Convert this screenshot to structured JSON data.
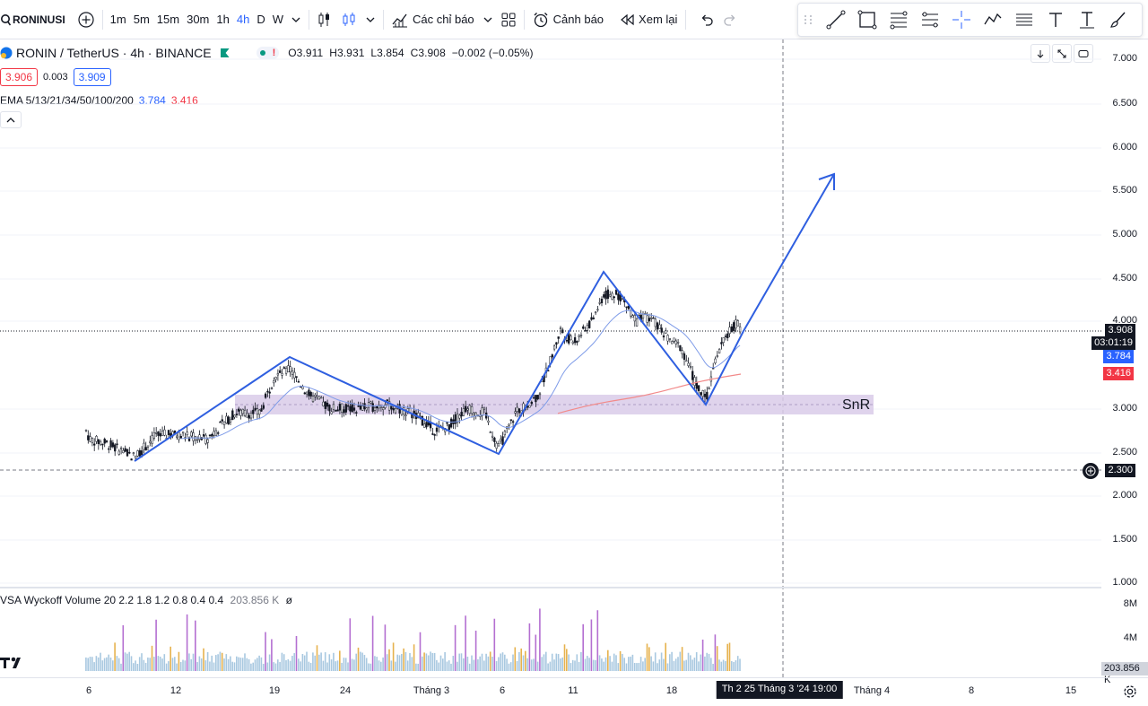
{
  "toolbar": {
    "symbol": "RONINUSI",
    "timeframes": [
      "1m",
      "5m",
      "15m",
      "30m",
      "1h",
      "4h",
      "D",
      "W"
    ],
    "active_timeframe": "4h",
    "indicators_label": "Các chỉ báo",
    "alert_label": "Cảnh báo",
    "replay_label": "Xem lại"
  },
  "legend": {
    "title": "RONIN / TetherUS · 4h · BINANCE",
    "open": "O3.911",
    "high": "H3.931",
    "low": "L3.854",
    "close": "C3.908",
    "change": "−0.002 (−0.05%)",
    "sell_price": "3.906",
    "spread": "0.003",
    "buy_price": "3.909",
    "ema_label": "EMA 5/13/21/34/50/100/200",
    "ema_value_1": "3.784",
    "ema_value_2": "3.416",
    "volume_label": "VSA Wyckoff Volume 20 2.2 1.8 1.2 0.8 0.4 0.4",
    "volume_value": "203.856 K",
    "volume_extra": "ø"
  },
  "price_scale": {
    "labels": [
      "7.000",
      "6.500",
      "6.000",
      "5.500",
      "5.000",
      "4.500",
      "4.000",
      "3.000",
      "2.500",
      "2.000",
      "1.500",
      "1.000"
    ],
    "current_price": "3.908",
    "countdown": "03:01:19",
    "ema_tag_1": "3.784",
    "ema_tag_2": "3.416",
    "crosshair_price": "2.300",
    "volume_labels": [
      "8M",
      "4M"
    ],
    "volume_current": "203.856 K"
  },
  "time_axis": {
    "labels": [
      "6",
      "12",
      "19",
      "24",
      "Tháng 3",
      "6",
      "11",
      "18",
      "Tháng 4",
      "8",
      "15"
    ],
    "cursor_label": "Th 2 25 Tháng 3 '24   19:00"
  },
  "annotations": {
    "zone_label": "SnR"
  },
  "colors": {
    "accent": "#2962ff",
    "drawing_line": "#2f5fe0",
    "zone_fill": "#d9cbe9",
    "ema_fast": "#7e9be8",
    "ema_slow": "#f28a8a",
    "down_red": "#f23645",
    "volume_bar": "#a8c8e0",
    "volume_high": "#b46fd1",
    "volume_mid": "#e6b24e"
  }
}
